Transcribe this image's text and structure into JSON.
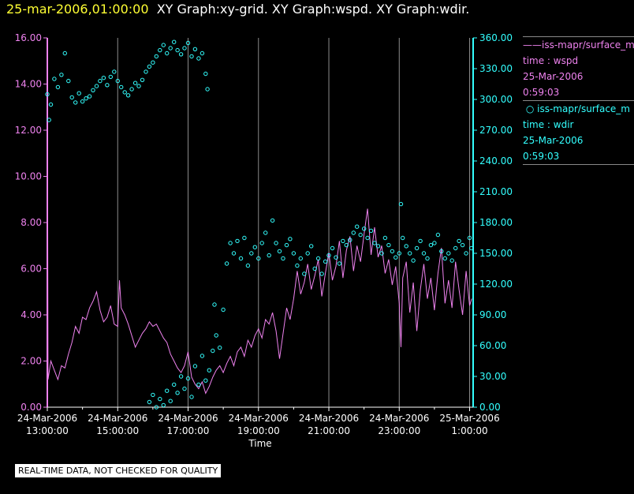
{
  "header": {
    "timestamp": "25-mar-2006,01:00:00",
    "graphs": "XY Graph:xy-grid.  XY Graph:wspd.  XY Graph:wdir."
  },
  "legend": {
    "entries": [
      {
        "symbol": "——",
        "source": "iss-mapr/surface_m",
        "variable": "time : wspd",
        "date": "25-Mar-2006",
        "time": "0:59:03",
        "color": "#ee82ee"
      },
      {
        "symbol": "○",
        "source": "iss-mapr/surface_m",
        "variable": "time : wdir",
        "date": "25-Mar-2006",
        "time": "0:59:03",
        "color": "#33ffff"
      }
    ]
  },
  "footer": {
    "note": "REAL-TIME DATA, NOT CHECKED FOR QUALITY"
  },
  "chart_data": {
    "type": "line",
    "xlabel": "Time",
    "x_ticks": [
      {
        "date": "24-Mar-2006",
        "time": "13:00:00",
        "hour": 13
      },
      {
        "date": "24-Mar-2006",
        "time": "15:00:00",
        "hour": 15
      },
      {
        "date": "24-Mar-2006",
        "time": "17:00:00",
        "hour": 17
      },
      {
        "date": "24-Mar-2006",
        "time": "19:00:00",
        "hour": 19
      },
      {
        "date": "24-Mar-2006",
        "time": "21:00:00",
        "hour": 21
      },
      {
        "date": "24-Mar-2006",
        "time": "23:00:00",
        "hour": 23
      },
      {
        "date": "25-Mar-2006",
        "time": "1:00:00",
        "hour": 25
      }
    ],
    "xlim": [
      13,
      25.1
    ],
    "y_left": {
      "ylim": [
        0,
        16
      ],
      "ticks": [
        "0.00",
        "2.00",
        "4.00",
        "6.00",
        "8.00",
        "10.00",
        "12.00",
        "14.00",
        "16.00"
      ],
      "color": "#ee82ee"
    },
    "y_right": {
      "ylim": [
        0,
        360
      ],
      "ticks": [
        "0.00",
        "30.00",
        "60.00",
        "90.00",
        "120.00",
        "150.00",
        "180.00",
        "210.00",
        "240.00",
        "270.00",
        "300.00",
        "330.00",
        "360.00"
      ],
      "color": "#33ffff"
    },
    "grid": "vertical",
    "series": [
      {
        "name": "iss-mapr/surface_m time : wspd",
        "axis": "left",
        "style": "line",
        "color": "#ee82ee",
        "points": [
          [
            13.0,
            16.0
          ],
          [
            13.02,
            1.2
          ],
          [
            13.1,
            2.0
          ],
          [
            13.2,
            1.6
          ],
          [
            13.3,
            1.2
          ],
          [
            13.4,
            1.8
          ],
          [
            13.5,
            1.7
          ],
          [
            13.6,
            2.3
          ],
          [
            13.7,
            2.8
          ],
          [
            13.8,
            3.5
          ],
          [
            13.9,
            3.2
          ],
          [
            14.0,
            3.9
          ],
          [
            14.1,
            3.8
          ],
          [
            14.2,
            4.3
          ],
          [
            14.3,
            4.6
          ],
          [
            14.4,
            5.0
          ],
          [
            14.5,
            4.2
          ],
          [
            14.6,
            3.7
          ],
          [
            14.7,
            3.9
          ],
          [
            14.8,
            4.4
          ],
          [
            14.9,
            3.6
          ],
          [
            15.0,
            3.5
          ],
          [
            15.05,
            5.5
          ],
          [
            15.1,
            4.3
          ],
          [
            15.2,
            4.0
          ],
          [
            15.3,
            3.6
          ],
          [
            15.4,
            3.1
          ],
          [
            15.5,
            2.6
          ],
          [
            15.6,
            2.9
          ],
          [
            15.7,
            3.2
          ],
          [
            15.8,
            3.4
          ],
          [
            15.9,
            3.7
          ],
          [
            16.0,
            3.5
          ],
          [
            16.1,
            3.6
          ],
          [
            16.2,
            3.3
          ],
          [
            16.3,
            3.0
          ],
          [
            16.4,
            2.8
          ],
          [
            16.5,
            2.3
          ],
          [
            16.6,
            2.0
          ],
          [
            16.7,
            1.7
          ],
          [
            16.8,
            1.5
          ],
          [
            16.9,
            1.8
          ],
          [
            17.0,
            2.4
          ],
          [
            17.1,
            1.3
          ],
          [
            17.2,
            1.0
          ],
          [
            17.3,
            0.8
          ],
          [
            17.4,
            1.1
          ],
          [
            17.5,
            0.6
          ],
          [
            17.6,
            0.9
          ],
          [
            17.7,
            1.3
          ],
          [
            17.8,
            1.6
          ],
          [
            17.9,
            1.8
          ],
          [
            18.0,
            1.5
          ],
          [
            18.1,
            1.9
          ],
          [
            18.2,
            2.2
          ],
          [
            18.3,
            1.8
          ],
          [
            18.4,
            2.4
          ],
          [
            18.5,
            2.6
          ],
          [
            18.6,
            2.2
          ],
          [
            18.7,
            2.9
          ],
          [
            18.8,
            2.6
          ],
          [
            18.9,
            3.1
          ],
          [
            19.0,
            3.4
          ],
          [
            19.1,
            3.0
          ],
          [
            19.2,
            3.8
          ],
          [
            19.3,
            3.6
          ],
          [
            19.4,
            4.1
          ],
          [
            19.5,
            3.3
          ],
          [
            19.6,
            2.1
          ],
          [
            19.7,
            3.2
          ],
          [
            19.8,
            4.3
          ],
          [
            19.9,
            3.8
          ],
          [
            20.0,
            4.7
          ],
          [
            20.1,
            5.9
          ],
          [
            20.2,
            4.9
          ],
          [
            20.3,
            5.4
          ],
          [
            20.4,
            6.2
          ],
          [
            20.5,
            5.1
          ],
          [
            20.6,
            5.7
          ],
          [
            20.7,
            6.4
          ],
          [
            20.8,
            4.8
          ],
          [
            20.9,
            5.8
          ],
          [
            21.0,
            6.7
          ],
          [
            21.1,
            5.5
          ],
          [
            21.2,
            6.1
          ],
          [
            21.3,
            7.2
          ],
          [
            21.4,
            5.6
          ],
          [
            21.5,
            6.8
          ],
          [
            21.6,
            7.4
          ],
          [
            21.7,
            5.9
          ],
          [
            21.8,
            7.0
          ],
          [
            21.9,
            6.3
          ],
          [
            22.0,
            7.5
          ],
          [
            22.1,
            8.6
          ],
          [
            22.2,
            6.6
          ],
          [
            22.3,
            7.8
          ],
          [
            22.4,
            6.5
          ],
          [
            22.5,
            7.0
          ],
          [
            22.6,
            5.8
          ],
          [
            22.7,
            6.4
          ],
          [
            22.8,
            5.3
          ],
          [
            22.9,
            6.1
          ],
          [
            23.0,
            4.5
          ],
          [
            23.05,
            2.6
          ],
          [
            23.1,
            5.6
          ],
          [
            23.2,
            6.3
          ],
          [
            23.3,
            4.1
          ],
          [
            23.4,
            5.4
          ],
          [
            23.5,
            3.3
          ],
          [
            23.6,
            5.1
          ],
          [
            23.7,
            6.2
          ],
          [
            23.8,
            4.7
          ],
          [
            23.9,
            5.6
          ],
          [
            24.0,
            4.2
          ],
          [
            24.1,
            5.8
          ],
          [
            24.2,
            6.9
          ],
          [
            24.3,
            4.5
          ],
          [
            24.4,
            5.5
          ],
          [
            24.5,
            4.3
          ],
          [
            24.6,
            6.3
          ],
          [
            24.7,
            5.1
          ],
          [
            24.8,
            4.0
          ],
          [
            24.9,
            5.9
          ],
          [
            25.0,
            4.4
          ],
          [
            25.06,
            4.7
          ]
        ]
      },
      {
        "name": "iss-mapr/surface_m time : wdir",
        "axis": "right",
        "style": "scatter",
        "color": "#33ffff",
        "points": [
          [
            13.0,
            305
          ],
          [
            13.05,
            280
          ],
          [
            13.1,
            295
          ],
          [
            13.2,
            320
          ],
          [
            13.3,
            312
          ],
          [
            13.4,
            324
          ],
          [
            13.5,
            345
          ],
          [
            13.6,
            318
          ],
          [
            13.7,
            302
          ],
          [
            13.8,
            297
          ],
          [
            13.9,
            306
          ],
          [
            14.0,
            298
          ],
          [
            14.1,
            301
          ],
          [
            14.2,
            303
          ],
          [
            14.3,
            309
          ],
          [
            14.4,
            313
          ],
          [
            14.5,
            318
          ],
          [
            14.6,
            321
          ],
          [
            14.7,
            314
          ],
          [
            14.8,
            322
          ],
          [
            14.9,
            327
          ],
          [
            15.0,
            318
          ],
          [
            15.1,
            312
          ],
          [
            15.2,
            307
          ],
          [
            15.3,
            304
          ],
          [
            15.4,
            310
          ],
          [
            15.5,
            316
          ],
          [
            15.6,
            313
          ],
          [
            15.7,
            319
          ],
          [
            15.8,
            327
          ],
          [
            15.9,
            332
          ],
          [
            16.0,
            336
          ],
          [
            16.1,
            342
          ],
          [
            16.2,
            348
          ],
          [
            16.3,
            353
          ],
          [
            16.4,
            345
          ],
          [
            16.5,
            350
          ],
          [
            16.6,
            356
          ],
          [
            16.7,
            348
          ],
          [
            16.8,
            344
          ],
          [
            16.9,
            350
          ],
          [
            17.0,
            355
          ],
          [
            17.1,
            342
          ],
          [
            17.2,
            349
          ],
          [
            17.3,
            340
          ],
          [
            17.4,
            345
          ],
          [
            17.5,
            325
          ],
          [
            17.55,
            310
          ],
          [
            15.9,
            5
          ],
          [
            16.0,
            12
          ],
          [
            16.1,
            0
          ],
          [
            16.2,
            8
          ],
          [
            16.3,
            2
          ],
          [
            16.4,
            16
          ],
          [
            16.5,
            6
          ],
          [
            16.6,
            22
          ],
          [
            16.7,
            14
          ],
          [
            16.8,
            30
          ],
          [
            16.9,
            18
          ],
          [
            17.0,
            28
          ],
          [
            17.1,
            10
          ],
          [
            17.2,
            40
          ],
          [
            17.3,
            22
          ],
          [
            17.4,
            50
          ],
          [
            17.5,
            26
          ],
          [
            17.6,
            36
          ],
          [
            17.7,
            55
          ],
          [
            17.75,
            100
          ],
          [
            17.8,
            70
          ],
          [
            17.9,
            58
          ],
          [
            18.0,
            95
          ],
          [
            18.1,
            140
          ],
          [
            18.2,
            160
          ],
          [
            18.3,
            150
          ],
          [
            18.4,
            162
          ],
          [
            18.5,
            145
          ],
          [
            18.6,
            165
          ],
          [
            18.7,
            138
          ],
          [
            18.8,
            150
          ],
          [
            18.9,
            156
          ],
          [
            19.0,
            145
          ],
          [
            19.1,
            160
          ],
          [
            19.2,
            170
          ],
          [
            19.3,
            148
          ],
          [
            19.4,
            182
          ],
          [
            19.5,
            160
          ],
          [
            19.6,
            152
          ],
          [
            19.7,
            145
          ],
          [
            19.8,
            158
          ],
          [
            19.9,
            164
          ],
          [
            20.0,
            150
          ],
          [
            20.1,
            138
          ],
          [
            20.2,
            145
          ],
          [
            20.3,
            130
          ],
          [
            20.4,
            150
          ],
          [
            20.5,
            157
          ],
          [
            20.6,
            135
          ],
          [
            20.7,
            145
          ],
          [
            20.8,
            130
          ],
          [
            20.9,
            142
          ],
          [
            21.0,
            148
          ],
          [
            21.1,
            155
          ],
          [
            21.2,
            146
          ],
          [
            21.3,
            140
          ],
          [
            21.4,
            162
          ],
          [
            21.5,
            158
          ],
          [
            21.6,
            163
          ],
          [
            21.7,
            170
          ],
          [
            21.8,
            176
          ],
          [
            21.9,
            168
          ],
          [
            22.0,
            174
          ],
          [
            22.1,
            165
          ],
          [
            22.2,
            172
          ],
          [
            22.3,
            160
          ],
          [
            22.4,
            157
          ],
          [
            22.5,
            150
          ],
          [
            22.6,
            165
          ],
          [
            22.7,
            158
          ],
          [
            22.8,
            152
          ],
          [
            22.9,
            146
          ],
          [
            23.0,
            150
          ],
          [
            23.05,
            198
          ],
          [
            23.1,
            165
          ],
          [
            23.2,
            157
          ],
          [
            23.3,
            150
          ],
          [
            23.4,
            143
          ],
          [
            23.5,
            155
          ],
          [
            23.6,
            162
          ],
          [
            23.7,
            150
          ],
          [
            23.8,
            145
          ],
          [
            23.9,
            158
          ],
          [
            24.0,
            160
          ],
          [
            24.1,
            168
          ],
          [
            24.2,
            152
          ],
          [
            24.3,
            145
          ],
          [
            24.4,
            150
          ],
          [
            24.5,
            143
          ],
          [
            24.6,
            155
          ],
          [
            24.7,
            162
          ],
          [
            24.8,
            158
          ],
          [
            24.9,
            150
          ],
          [
            25.0,
            165
          ],
          [
            25.05,
            155
          ]
        ]
      }
    ]
  }
}
